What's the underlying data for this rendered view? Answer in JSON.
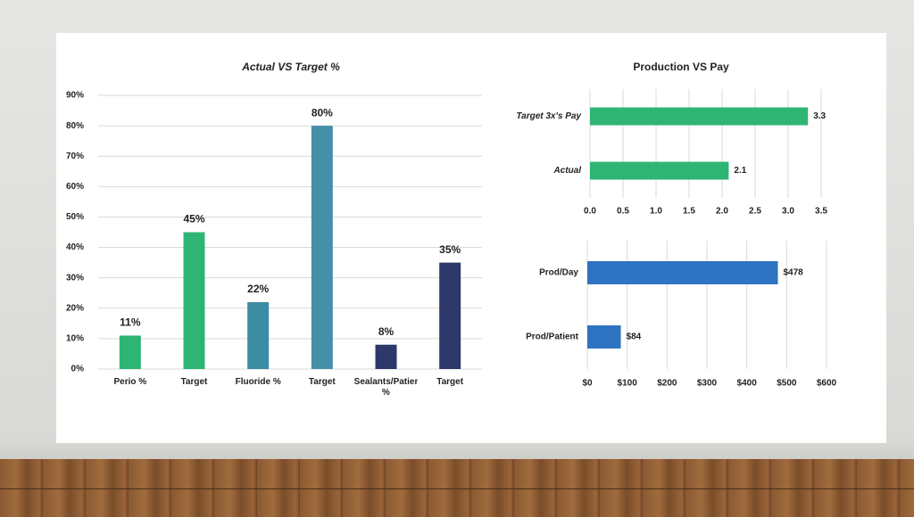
{
  "chart_data": [
    {
      "type": "bar",
      "title": "Actual VS Target %",
      "categories": [
        "Perio %",
        "Target",
        "Fluoride %",
        "Target",
        "Sealants/Patient %",
        "Target"
      ],
      "values": [
        11,
        45,
        22,
        80,
        8,
        35
      ],
      "value_labels": [
        "11%",
        "45%",
        "22%",
        "80%",
        "8%",
        "35%"
      ],
      "colors": [
        "#2fb573",
        "#2fb573",
        "#3c8ca3",
        "#4590a8",
        "#2c3868",
        "#2c3868"
      ],
      "ylim": [
        0,
        90
      ],
      "yticks": [
        {
          "value": 0,
          "label": "0%"
        },
        {
          "value": 10,
          "label": "10%"
        },
        {
          "value": 20,
          "label": "20%"
        },
        {
          "value": 30,
          "label": "30%"
        },
        {
          "value": 40,
          "label": "40%"
        },
        {
          "value": 50,
          "label": "50%"
        },
        {
          "value": 60,
          "label": "60%"
        },
        {
          "value": 70,
          "label": "70%"
        },
        {
          "value": 80,
          "label": "80%"
        },
        {
          "value": 90,
          "label": "90%"
        }
      ],
      "grid": true
    },
    {
      "type": "hbar",
      "title": "Production VS Pay",
      "categories": [
        "Target 3x's Pay",
        "Actual"
      ],
      "values": [
        3.3,
        2.1
      ],
      "color": "#2fb573",
      "xlim": [
        0,
        3.5
      ],
      "xticks": [
        {
          "value": 0,
          "label": "0.0"
        },
        0.5,
        {
          "value": 1,
          "label": "1.0"
        },
        1.5,
        {
          "value": 2,
          "label": "2.0"
        },
        2.5,
        {
          "value": 3,
          "label": "3.0"
        },
        3.5
      ],
      "grid": true
    },
    {
      "type": "hbar",
      "categories": [
        "Prod/Day",
        "Prod/Patient"
      ],
      "values": [
        478,
        84
      ],
      "value_labels": [
        "$478",
        "$84"
      ],
      "color": "#2e74c2",
      "xlim": [
        0,
        600
      ],
      "xticks": [
        {
          "value": 0,
          "label": "$0"
        },
        {
          "value": 100,
          "label": "$100"
        },
        {
          "value": 200,
          "label": "$200"
        },
        {
          "value": 300,
          "label": "$300"
        },
        {
          "value": 400,
          "label": "$400"
        },
        {
          "value": 500,
          "label": "$500"
        },
        {
          "value": 600,
          "label": "$600"
        }
      ],
      "grid": true
    }
  ]
}
